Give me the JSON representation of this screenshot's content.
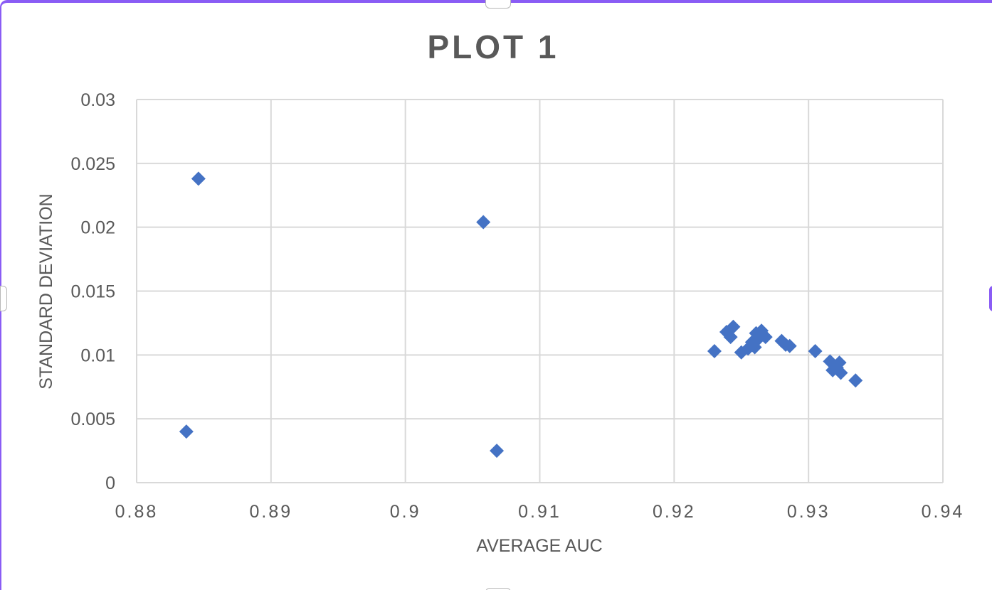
{
  "chart_data": {
    "type": "scatter",
    "title": "PLOT 1",
    "xlabel": "AVERAGE AUC",
    "ylabel": "STANDARD DEVIATION",
    "xlim": [
      0.88,
      0.94
    ],
    "ylim": [
      0,
      0.03
    ],
    "x_ticks": [
      "0.88",
      "0.89",
      "0.9",
      "0.91",
      "0.92",
      "0.93",
      "0.94"
    ],
    "y_ticks": [
      "0",
      "0.005",
      "0.01",
      "0.015",
      "0.02",
      "0.025",
      "0.03"
    ],
    "grid": true,
    "marker": "diamond",
    "marker_color": "#4472c4",
    "points": [
      {
        "x": 0.8837,
        "y": 0.004
      },
      {
        "x": 0.8846,
        "y": 0.0238
      },
      {
        "x": 0.9058,
        "y": 0.0204
      },
      {
        "x": 0.9068,
        "y": 0.0025
      },
      {
        "x": 0.923,
        "y": 0.0103
      },
      {
        "x": 0.9239,
        "y": 0.0118
      },
      {
        "x": 0.9242,
        "y": 0.0114
      },
      {
        "x": 0.9244,
        "y": 0.0122
      },
      {
        "x": 0.925,
        "y": 0.0102
      },
      {
        "x": 0.9255,
        "y": 0.0105
      },
      {
        "x": 0.9258,
        "y": 0.011
      },
      {
        "x": 0.926,
        "y": 0.0106
      },
      {
        "x": 0.9261,
        "y": 0.0117
      },
      {
        "x": 0.9263,
        "y": 0.0113
      },
      {
        "x": 0.9265,
        "y": 0.0119
      },
      {
        "x": 0.9266,
        "y": 0.0116
      },
      {
        "x": 0.9268,
        "y": 0.0114
      },
      {
        "x": 0.928,
        "y": 0.0111
      },
      {
        "x": 0.9283,
        "y": 0.0108
      },
      {
        "x": 0.9286,
        "y": 0.0107
      },
      {
        "x": 0.9305,
        "y": 0.0103
      },
      {
        "x": 0.9316,
        "y": 0.0095
      },
      {
        "x": 0.9318,
        "y": 0.0088
      },
      {
        "x": 0.9321,
        "y": 0.009
      },
      {
        "x": 0.9323,
        "y": 0.0094
      },
      {
        "x": 0.9324,
        "y": 0.0086
      },
      {
        "x": 0.9335,
        "y": 0.008
      }
    ]
  }
}
